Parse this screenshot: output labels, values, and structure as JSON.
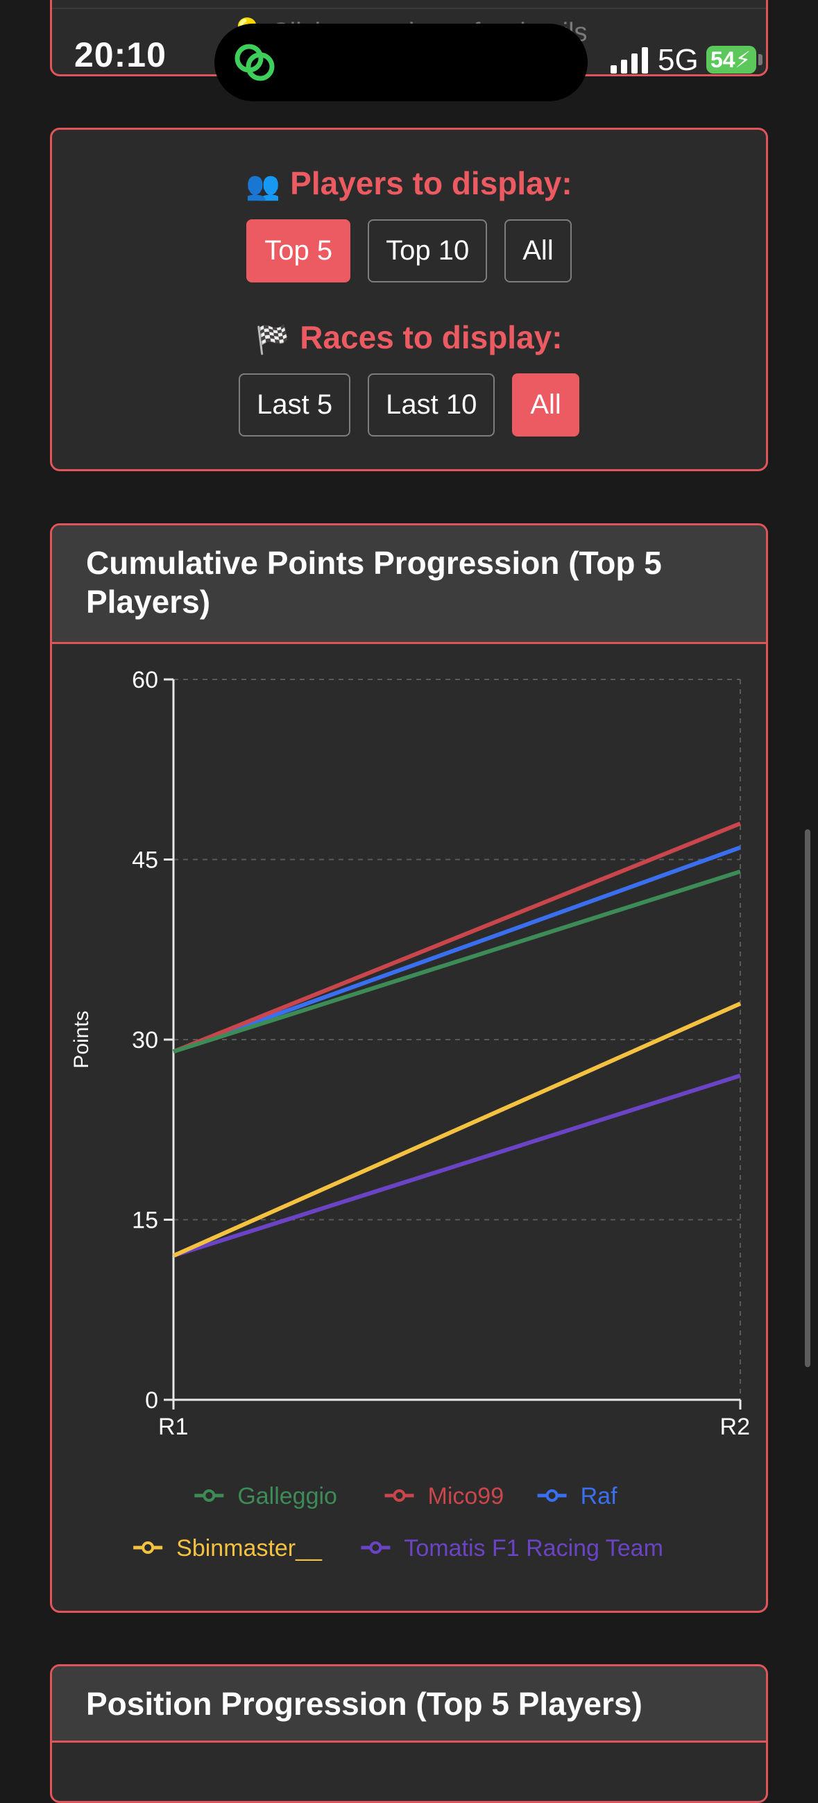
{
  "status_bar": {
    "time": "20:10",
    "network": "5G",
    "battery": "54"
  },
  "hint": {
    "text": "💡 Click on a player for details"
  },
  "filters": {
    "players_heading": "Players to display:",
    "players_options": [
      "Top 5",
      "Top 10",
      "All"
    ],
    "players_selected": "Top 5",
    "races_heading": "Races to display:",
    "races_options": [
      "Last 5",
      "Last 10",
      "All"
    ],
    "races_selected": "All"
  },
  "cumulative_card": {
    "title": "Cumulative Points Progression (Top 5 Players)"
  },
  "position_card": {
    "title": "Position Progression (Top 5 Players)"
  },
  "chart_data": {
    "type": "line",
    "title": "Cumulative Points Progression (Top 5 Players)",
    "xlabel": "",
    "ylabel": "Points",
    "x": [
      "R1",
      "R2"
    ],
    "ylim": [
      0,
      60
    ],
    "yticks": [
      0,
      15,
      30,
      45,
      60
    ],
    "grid": true,
    "legend": "bottom",
    "series": [
      {
        "name": "Galleggio",
        "values": [
          29,
          44
        ],
        "color": "#3d8b57"
      },
      {
        "name": "Mico99",
        "values": [
          29,
          48
        ],
        "color": "#c9464c"
      },
      {
        "name": "Raf",
        "values": [
          29,
          46
        ],
        "color": "#3a6ff0"
      },
      {
        "name": "Sbinmaster__",
        "values": [
          12,
          33
        ],
        "color": "#f4c240"
      },
      {
        "name": "Tomatis F1 Racing Team",
        "values": [
          12,
          27
        ],
        "color": "#6a44c4"
      }
    ]
  }
}
